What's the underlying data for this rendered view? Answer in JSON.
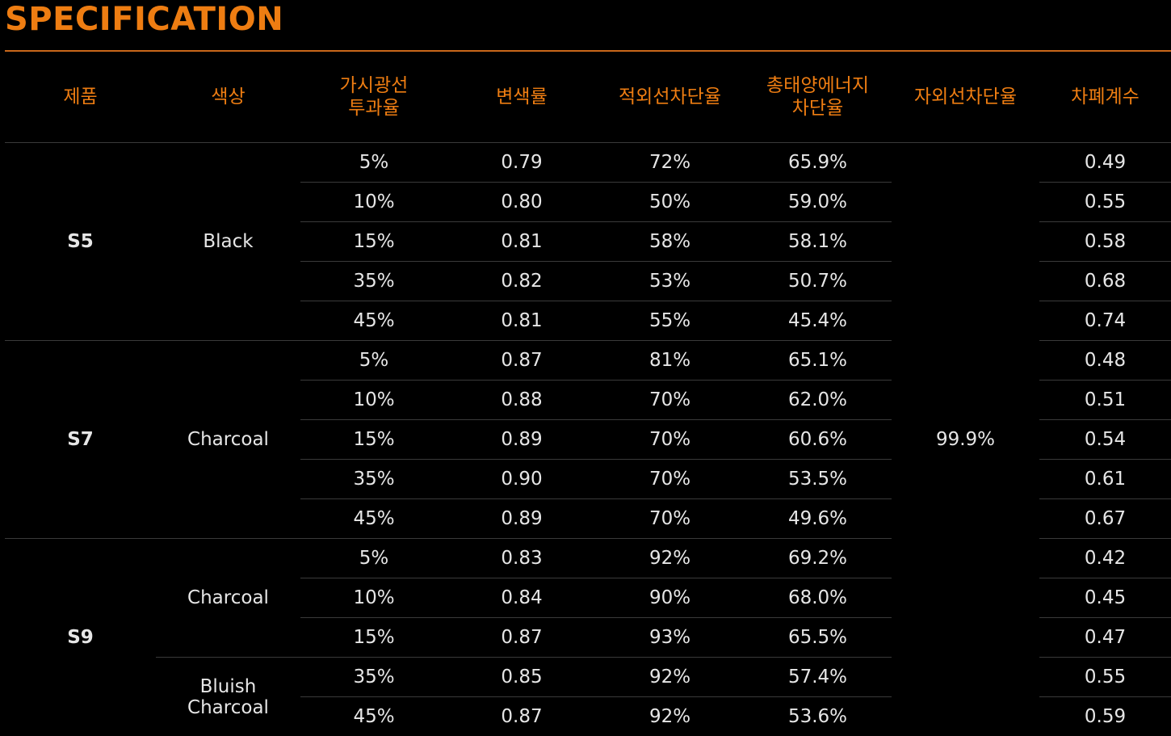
{
  "title": "SPECIFICATION",
  "headers": {
    "product": "제품",
    "color": "색상",
    "vlt": "가시광선\n투과율",
    "discolor": "변색률",
    "ir": "적외선차단율",
    "tser": "총태양에너지\n차단율",
    "uv": "자외선차단율",
    "shading": "차폐계수"
  },
  "groups": [
    {
      "product": "S5",
      "colors": [
        {
          "name": "Black",
          "rows": [
            {
              "vlt": "5%",
              "discolor": "0.79",
              "ir": "72%",
              "tser": "65.9%",
              "shading": "0.49"
            },
            {
              "vlt": "10%",
              "discolor": "0.80",
              "ir": "50%",
              "tser": "59.0%",
              "shading": "0.55"
            },
            {
              "vlt": "15%",
              "discolor": "0.81",
              "ir": "58%",
              "tser": "58.1%",
              "shading": "0.58"
            },
            {
              "vlt": "35%",
              "discolor": "0.82",
              "ir": "53%",
              "tser": "50.7%",
              "shading": "0.68"
            },
            {
              "vlt": "45%",
              "discolor": "0.81",
              "ir": "55%",
              "tser": "45.4%",
              "shading": "0.74"
            }
          ]
        }
      ]
    },
    {
      "product": "S7",
      "colors": [
        {
          "name": "Charcoal",
          "rows": [
            {
              "vlt": "5%",
              "discolor": "0.87",
              "ir": "81%",
              "tser": "65.1%",
              "shading": "0.48"
            },
            {
              "vlt": "10%",
              "discolor": "0.88",
              "ir": "70%",
              "tser": "62.0%",
              "shading": "0.51"
            },
            {
              "vlt": "15%",
              "discolor": "0.89",
              "ir": "70%",
              "tser": "60.6%",
              "shading": "0.54"
            },
            {
              "vlt": "35%",
              "discolor": "0.90",
              "ir": "70%",
              "tser": "53.5%",
              "shading": "0.61"
            },
            {
              "vlt": "45%",
              "discolor": "0.89",
              "ir": "70%",
              "tser": "49.6%",
              "shading": "0.67"
            }
          ]
        }
      ]
    },
    {
      "product": "S9",
      "colors": [
        {
          "name": "Charcoal",
          "rows": [
            {
              "vlt": "5%",
              "discolor": "0.83",
              "ir": "92%",
              "tser": "69.2%",
              "shading": "0.42"
            },
            {
              "vlt": "10%",
              "discolor": "0.84",
              "ir": "90%",
              "tser": "68.0%",
              "shading": "0.45"
            },
            {
              "vlt": "15%",
              "discolor": "0.87",
              "ir": "93%",
              "tser": "65.5%",
              "shading": "0.47"
            }
          ]
        },
        {
          "name": "Bluish\nCharcoal",
          "rows": [
            {
              "vlt": "35%",
              "discolor": "0.85",
              "ir": "92%",
              "tser": "57.4%",
              "shading": "0.55"
            },
            {
              "vlt": "45%",
              "discolor": "0.87",
              "ir": "92%",
              "tser": "53.6%",
              "shading": "0.59"
            }
          ]
        }
      ]
    }
  ],
  "uv_value": "99.9%",
  "colors": {
    "accent": "#ee7d12",
    "background": "#000000",
    "text": "#e6e6e6",
    "rule": "#3a3a3a"
  }
}
